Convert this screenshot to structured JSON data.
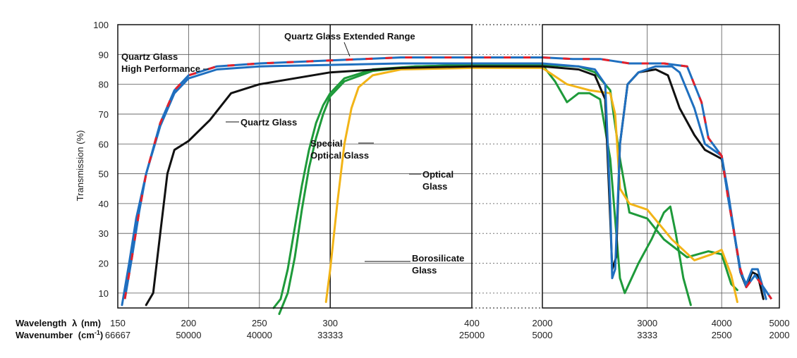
{
  "chart_data": {
    "type": "line",
    "ylabel": "Transmission (%)",
    "ylim": [
      5,
      100
    ],
    "yticks": [
      10,
      20,
      30,
      40,
      50,
      60,
      70,
      80,
      90,
      100
    ],
    "grid": true,
    "xaxis_labels": {
      "wavelength": "Wavelength",
      "lambda": "λ",
      "wavelength_unit": "(nm)",
      "wavenumber": "Wavenumber",
      "wavenumber_unit_open": "(cm",
      "wavenumber_unit_sup": "-1",
      "wavenumber_unit_close": ")"
    },
    "segments": [
      {
        "scale": "linear",
        "range_nm": [
          150,
          400
        ],
        "ticks": [
          {
            "nm": 150,
            "wn": "66667"
          },
          {
            "nm": 200,
            "wn": "50000"
          },
          {
            "nm": 250,
            "wn": "40000"
          },
          {
            "nm": 300,
            "wn": "33333"
          },
          {
            "nm": 400,
            "wn": "25000"
          }
        ]
      },
      {
        "scale": "break",
        "range_nm": [
          400,
          2000
        ]
      },
      {
        "scale": "log",
        "range_nm": [
          2000,
          5000
        ],
        "ticks": [
          {
            "nm": 2000,
            "wn": "5000"
          },
          {
            "nm": 3000,
            "wn": "3333"
          },
          {
            "nm": 4000,
            "wn": "2500"
          },
          {
            "nm": 5000,
            "wn": "2000"
          }
        ]
      }
    ],
    "annotations": [
      {
        "text": "Quartz Glass Extended Range"
      },
      {
        "lines": [
          "Quartz Glass",
          "High Performance"
        ]
      },
      {
        "text": "Quartz Glass"
      },
      {
        "lines": [
          "Special",
          "Optical Glass"
        ]
      },
      {
        "lines": [
          "Optical",
          "Glass"
        ]
      },
      {
        "lines": [
          "Borosilicate",
          "Glass"
        ]
      }
    ],
    "colors": {
      "extended_range": "#e4202a",
      "high_performance": "#1f6fbf",
      "quartz_glass": "#111111",
      "special_optical": "#1e9a3a",
      "optical": "#f2b417",
      "borosilicate": "#1e9a3a"
    },
    "series": [
      {
        "key": "extended_range",
        "dashed_with": "high_performance",
        "points": [
          [
            155,
            8
          ],
          [
            160,
            22
          ],
          [
            165,
            37
          ],
          [
            170,
            50
          ],
          [
            180,
            67
          ],
          [
            190,
            78
          ],
          [
            200,
            83
          ],
          [
            220,
            86
          ],
          [
            250,
            87
          ],
          [
            300,
            88
          ],
          [
            350,
            89
          ],
          [
            400,
            89
          ],
          [
            1000,
            89
          ],
          [
            2000,
            89
          ],
          [
            2250,
            88.5
          ],
          [
            2500,
            88.5
          ],
          [
            2800,
            87
          ],
          [
            3200,
            87
          ],
          [
            3500,
            86
          ],
          [
            3700,
            74
          ],
          [
            3800,
            62
          ],
          [
            4000,
            56
          ],
          [
            4100,
            42
          ],
          [
            4300,
            18
          ],
          [
            4400,
            12
          ],
          [
            4550,
            16
          ],
          [
            4700,
            12
          ],
          [
            4850,
            8
          ]
        ]
      },
      {
        "key": "high_performance",
        "points": [
          [
            153,
            6
          ],
          [
            158,
            20
          ],
          [
            163,
            35
          ],
          [
            170,
            50
          ],
          [
            180,
            66
          ],
          [
            190,
            77
          ],
          [
            200,
            82
          ],
          [
            220,
            85
          ],
          [
            250,
            86
          ],
          [
            300,
            86.5
          ],
          [
            350,
            87
          ],
          [
            400,
            87
          ],
          [
            1000,
            87
          ],
          [
            2000,
            87
          ],
          [
            2300,
            86
          ],
          [
            2450,
            85
          ],
          [
            2550,
            80
          ],
          [
            2600,
            40
          ],
          [
            2620,
            15
          ],
          [
            2650,
            18
          ],
          [
            2700,
            60
          ],
          [
            2780,
            80
          ],
          [
            2900,
            84
          ],
          [
            3100,
            86
          ],
          [
            3300,
            86
          ],
          [
            3400,
            84
          ],
          [
            3600,
            72
          ],
          [
            3750,
            60
          ],
          [
            4000,
            56
          ],
          [
            4100,
            44
          ],
          [
            4300,
            17
          ],
          [
            4400,
            13
          ],
          [
            4500,
            18
          ],
          [
            4600,
            18
          ],
          [
            4750,
            8
          ]
        ]
      },
      {
        "key": "quartz_glass",
        "points": [
          [
            170,
            6
          ],
          [
            175,
            10
          ],
          [
            180,
            30
          ],
          [
            185,
            50
          ],
          [
            190,
            58
          ],
          [
            200,
            61
          ],
          [
            215,
            68
          ],
          [
            230,
            77
          ],
          [
            250,
            80
          ],
          [
            300,
            84
          ],
          [
            350,
            85.5
          ],
          [
            400,
            86
          ],
          [
            1000,
            86
          ],
          [
            2000,
            86
          ],
          [
            2300,
            85
          ],
          [
            2450,
            83
          ],
          [
            2550,
            75
          ],
          [
            2600,
            35
          ],
          [
            2620,
            18
          ],
          [
            2660,
            22
          ],
          [
            2700,
            60
          ],
          [
            2780,
            80
          ],
          [
            2900,
            84
          ],
          [
            3100,
            85
          ],
          [
            3250,
            83
          ],
          [
            3400,
            72
          ],
          [
            3600,
            63
          ],
          [
            3750,
            58
          ],
          [
            4000,
            55
          ],
          [
            4100,
            43
          ],
          [
            4300,
            17
          ],
          [
            4400,
            12
          ],
          [
            4500,
            17
          ],
          [
            4600,
            16
          ],
          [
            4700,
            8
          ]
        ]
      },
      {
        "key": "special_optical",
        "points": [
          [
            260,
            5
          ],
          [
            265,
            8
          ],
          [
            270,
            18
          ],
          [
            275,
            32
          ],
          [
            280,
            46
          ],
          [
            285,
            58
          ],
          [
            290,
            67
          ],
          [
            295,
            73
          ],
          [
            300,
            77
          ],
          [
            310,
            82
          ],
          [
            330,
            85
          ],
          [
            360,
            86
          ],
          [
            400,
            86.5
          ],
          [
            1000,
            86.5
          ],
          [
            2000,
            86.5
          ],
          [
            2300,
            86
          ],
          [
            2450,
            84
          ],
          [
            2600,
            78
          ],
          [
            2700,
            55
          ],
          [
            2800,
            37
          ],
          [
            3000,
            35
          ],
          [
            3200,
            28
          ],
          [
            3500,
            22
          ],
          [
            3800,
            24
          ],
          [
            4000,
            23
          ],
          [
            4150,
            13
          ],
          [
            4250,
            11
          ]
        ]
      },
      {
        "key": "optical",
        "points": [
          [
            297,
            7
          ],
          [
            300,
            18
          ],
          [
            305,
            40
          ],
          [
            310,
            60
          ],
          [
            315,
            72
          ],
          [
            320,
            79
          ],
          [
            330,
            83
          ],
          [
            350,
            85
          ],
          [
            400,
            85.5
          ],
          [
            1000,
            85.5
          ],
          [
            2000,
            85.5
          ],
          [
            2200,
            80
          ],
          [
            2400,
            78
          ],
          [
            2600,
            77
          ],
          [
            2650,
            70
          ],
          [
            2700,
            45
          ],
          [
            2800,
            40
          ],
          [
            3000,
            38
          ],
          [
            3300,
            28
          ],
          [
            3600,
            21
          ],
          [
            3850,
            23
          ],
          [
            4000,
            24.5
          ],
          [
            4150,
            16
          ],
          [
            4250,
            7
          ]
        ]
      },
      {
        "key": "borosilicate",
        "points": [
          [
            264,
            3
          ],
          [
            270,
            10
          ],
          [
            275,
            22
          ],
          [
            280,
            38
          ],
          [
            285,
            52
          ],
          [
            290,
            62
          ],
          [
            295,
            70
          ],
          [
            300,
            76
          ],
          [
            310,
            81
          ],
          [
            330,
            84.5
          ],
          [
            360,
            86
          ],
          [
            400,
            86.5
          ],
          [
            1000,
            86.5
          ],
          [
            2000,
            86.5
          ],
          [
            2100,
            81
          ],
          [
            2200,
            74
          ],
          [
            2300,
            77
          ],
          [
            2400,
            77
          ],
          [
            2500,
            75
          ],
          [
            2600,
            55
          ],
          [
            2700,
            15
          ],
          [
            2750,
            10
          ],
          [
            2900,
            20
          ],
          [
            3050,
            28
          ],
          [
            3200,
            37
          ],
          [
            3280,
            39
          ],
          [
            3350,
            30
          ],
          [
            3450,
            15
          ],
          [
            3550,
            6
          ]
        ]
      }
    ]
  }
}
